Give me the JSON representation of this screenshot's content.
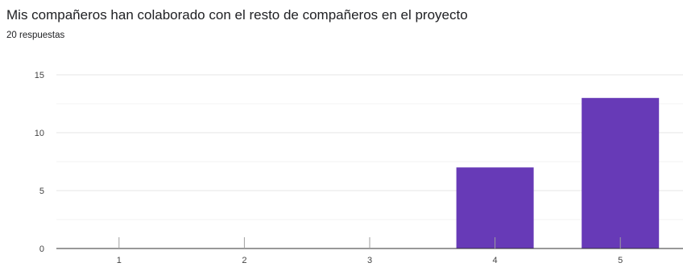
{
  "header": {
    "title": "Mis compañeros han colaborado con el resto de compañeros en el proyecto",
    "responses": "20 respuestas"
  },
  "chart_data": {
    "type": "bar",
    "categories": [
      "1",
      "2",
      "3",
      "4",
      "5"
    ],
    "values": [
      0,
      0,
      0,
      7,
      13
    ],
    "ylim": [
      0,
      15
    ],
    "yticks": [
      0,
      5,
      10,
      15
    ],
    "minor_grid_step": 2.5,
    "grid": true,
    "bar_color": "#673ab7",
    "xlabel": "",
    "ylabel": ""
  }
}
